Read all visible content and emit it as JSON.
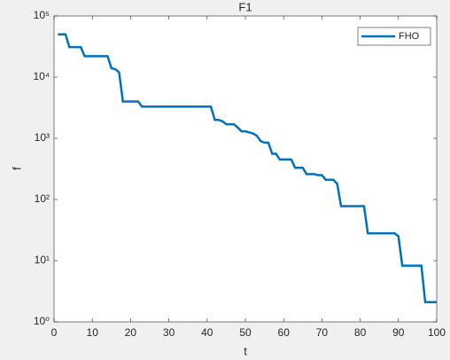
{
  "chart_data": {
    "type": "line",
    "title": "F1",
    "xlabel": "t",
    "ylabel": "f",
    "log_y": true,
    "grid": false,
    "legend": "northeast",
    "xlim": [
      0,
      100
    ],
    "xticks": [
      0,
      10,
      20,
      30,
      40,
      50,
      60,
      70,
      80,
      90,
      100
    ],
    "ylim": [
      1,
      100000
    ],
    "yticks": [
      {
        "value": 1,
        "label": "10⁰"
      },
      {
        "value": 10,
        "label": "10¹"
      },
      {
        "value": 100,
        "label": "10²"
      },
      {
        "value": 1000,
        "label": "10³"
      },
      {
        "value": 10000,
        "label": "10⁴"
      },
      {
        "value": 100000,
        "label": "10⁵"
      }
    ],
    "x": [
      1,
      2,
      3,
      4,
      5,
      6,
      7,
      8,
      9,
      10,
      11,
      12,
      13,
      14,
      15,
      16,
      17,
      18,
      19,
      20,
      21,
      22,
      23,
      24,
      25,
      26,
      27,
      28,
      29,
      30,
      31,
      32,
      33,
      34,
      35,
      36,
      37,
      38,
      39,
      40,
      41,
      42,
      43,
      44,
      45,
      46,
      47,
      48,
      49,
      50,
      51,
      52,
      53,
      54,
      55,
      56,
      57,
      58,
      59,
      60,
      61,
      62,
      63,
      64,
      65,
      66,
      67,
      68,
      69,
      70,
      71,
      72,
      73,
      74,
      75,
      76,
      77,
      78,
      79,
      80,
      81,
      82,
      83,
      84,
      85,
      86,
      87,
      88,
      89,
      90,
      91,
      92,
      93,
      94,
      95,
      96,
      97,
      98,
      99,
      100
    ],
    "series": [
      {
        "name": "FHO",
        "color": "#0072bd",
        "values": [
          50000,
          50000,
          50000,
          31000,
          31000,
          31000,
          31000,
          22000,
          22000,
          22000,
          22000,
          22000,
          22000,
          22000,
          14000,
          13500,
          12000,
          4000,
          4000,
          4000,
          4000,
          4000,
          3300,
          3300,
          3300,
          3300,
          3300,
          3300,
          3300,
          3300,
          3300,
          3300,
          3300,
          3300,
          3300,
          3300,
          3300,
          3300,
          3300,
          3300,
          3300,
          2000,
          2000,
          1900,
          1700,
          1700,
          1700,
          1500,
          1300,
          1300,
          1250,
          1200,
          1100,
          900,
          850,
          850,
          560,
          560,
          450,
          450,
          450,
          450,
          330,
          330,
          330,
          260,
          260,
          260,
          250,
          250,
          210,
          210,
          210,
          180,
          78,
          78,
          78,
          78,
          78,
          78,
          78,
          28,
          28,
          28,
          28,
          28,
          28,
          28,
          28,
          25,
          8.3,
          8.3,
          8.3,
          8.3,
          8.3,
          8.3,
          2.1,
          2.1,
          2.1,
          2.1
        ]
      }
    ]
  }
}
